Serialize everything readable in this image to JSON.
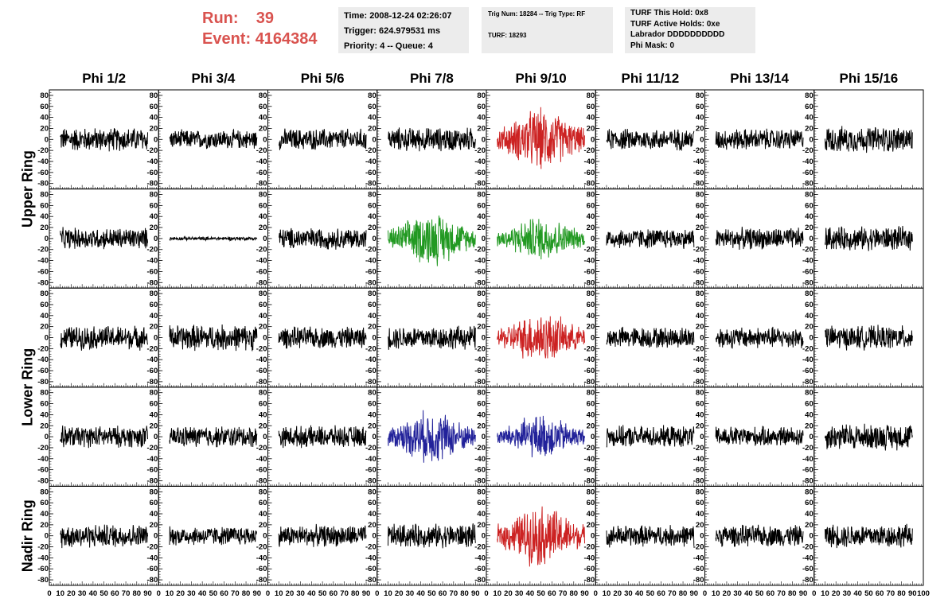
{
  "header": {
    "run_label": "Run:",
    "run_value": "39",
    "event_label": "Event:",
    "event_value": "4164384",
    "time": "Time: 2008-12-24 02:26:07",
    "trigger": "Trigger: 624.979531 ms",
    "priority": "Priority: 4 -- Queue: 4",
    "trig_num": "Trig Num: 18284 -- Trig Type: RF",
    "turf": "TURF: 18293",
    "turf_this_hold": "TURF This Hold: 0x8",
    "turf_active_holds": "TURF Active Holds: 0xe",
    "labrador": "Labrador DDDDDDDDDD",
    "phi_mask": "Phi Mask: 0"
  },
  "colors": {
    "header_accent": "#d9534f",
    "trace_default": "#000000",
    "trace_red": "#cc2222",
    "trace_green": "#229922",
    "trace_blue": "#22229a"
  },
  "chart_data": {
    "type": "line",
    "grid": false,
    "columns": [
      "Phi 1/2",
      "Phi 3/4",
      "Phi 5/6",
      "Phi 7/8",
      "Phi 9/10",
      "Phi 11/12",
      "Phi 13/14",
      "Phi 15/16"
    ],
    "row_groups": [
      "Upper Ring",
      "Lower Ring",
      "Nadir Ring"
    ],
    "xlim": [
      0,
      100
    ],
    "ylim": [
      -90,
      90
    ],
    "x_tick_labels": [
      "0",
      "10",
      "20",
      "30",
      "40",
      "50",
      "60",
      "70",
      "80",
      "90",
      "100"
    ],
    "y_tick_labels": [
      "80",
      "60",
      "40",
      "20",
      "0",
      "-20",
      "-40",
      "-60",
      "-80"
    ],
    "panel_rows": [
      {
        "group": "Upper Ring",
        "colors": [
          "black",
          "black",
          "black",
          "black",
          "red",
          "black",
          "black",
          "black"
        ],
        "amplitudes": [
          20,
          16,
          18,
          20,
          42,
          18,
          18,
          22
        ]
      },
      {
        "group": "Upper Ring",
        "colors": [
          "black",
          "black",
          "black",
          "green",
          "green",
          "black",
          "black",
          "black"
        ],
        "amplitudes": [
          18,
          3,
          18,
          36,
          30,
          17,
          18,
          20
        ]
      },
      {
        "group": "Lower Ring",
        "colors": [
          "black",
          "black",
          "black",
          "black",
          "red",
          "black",
          "black",
          "black"
        ],
        "amplitudes": [
          20,
          22,
          18,
          20,
          35,
          18,
          18,
          20
        ]
      },
      {
        "group": "Lower Ring",
        "colors": [
          "black",
          "black",
          "black",
          "blue",
          "blue",
          "black",
          "black",
          "black"
        ],
        "amplitudes": [
          18,
          18,
          18,
          36,
          30,
          18,
          17,
          22
        ]
      },
      {
        "group": "Nadir Ring",
        "colors": [
          "black",
          "black",
          "black",
          "black",
          "red",
          "black",
          "black",
          "black"
        ],
        "amplitudes": [
          20,
          16,
          18,
          20,
          42,
          18,
          18,
          20
        ]
      }
    ]
  }
}
